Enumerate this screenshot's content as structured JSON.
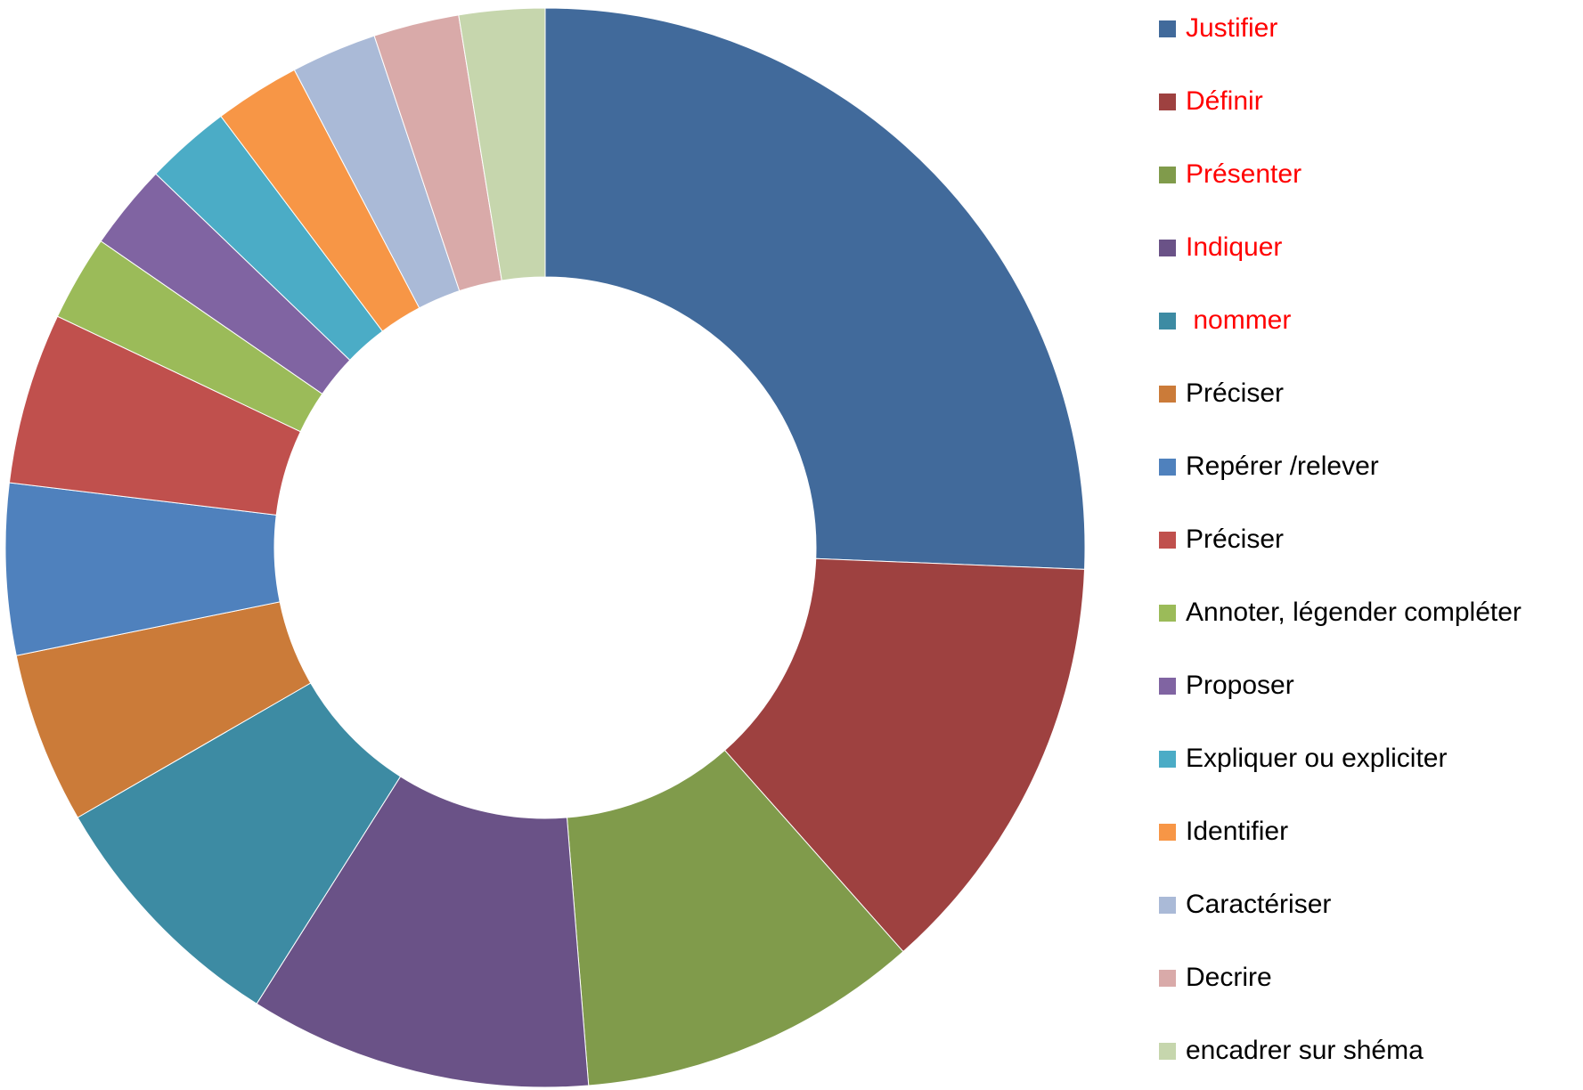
{
  "chart_data": {
    "type": "donut",
    "categories": [
      "Justifier",
      "Définir",
      "Présenter",
      "Indiquer",
      " nommer",
      "Préciser",
      "Repérer /relever",
      "Préciser",
      "Annoter, légender compléter",
      "Proposer",
      "Expliquer ou expliciter",
      "Identifier",
      "Caractériser",
      "Decrire",
      "encadrer sur shéma"
    ],
    "values": [
      10,
      5,
      4,
      4,
      3,
      2,
      2,
      2,
      1,
      1,
      1,
      1,
      1,
      1,
      1
    ],
    "colors": [
      "#416a9b",
      "#9e4140",
      "#809b4b",
      "#6a5287",
      "#3d8ba3",
      "#cb7b39",
      "#4f81bd",
      "#c0504d",
      "#9bbb59",
      "#8064a2",
      "#4bacc6",
      "#f79646",
      "#aabad7",
      "#d9aaa9",
      "#c6d6ad"
    ],
    "label_colors": [
      "#ff0000",
      "#ff0000",
      "#ff0000",
      "#ff0000",
      "#ff0000",
      "#000000",
      "#000000",
      "#000000",
      "#000000",
      "#000000",
      "#000000",
      "#000000",
      "#000000",
      "#000000",
      "#000000"
    ],
    "legend": "right"
  }
}
